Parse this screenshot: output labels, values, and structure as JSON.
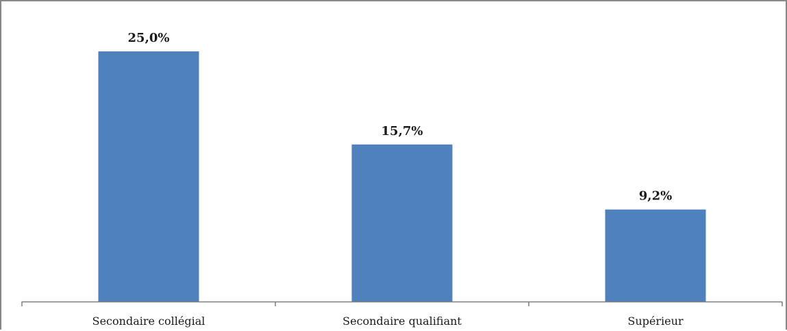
{
  "chart_data": {
    "type": "bar",
    "categories": [
      "Secondaire collégial",
      "Secondaire qualifiant",
      "Supérieur"
    ],
    "values": [
      25.0,
      15.7,
      9.2
    ],
    "value_labels": [
      "25,0%",
      "15,7%",
      "9,2%"
    ],
    "title": "",
    "xlabel": "",
    "ylabel": "",
    "ylim": [
      0,
      30
    ],
    "grid": false,
    "legend": "none",
    "bar_color": "#4F81BD",
    "axis_color": "#7F7F7F"
  }
}
